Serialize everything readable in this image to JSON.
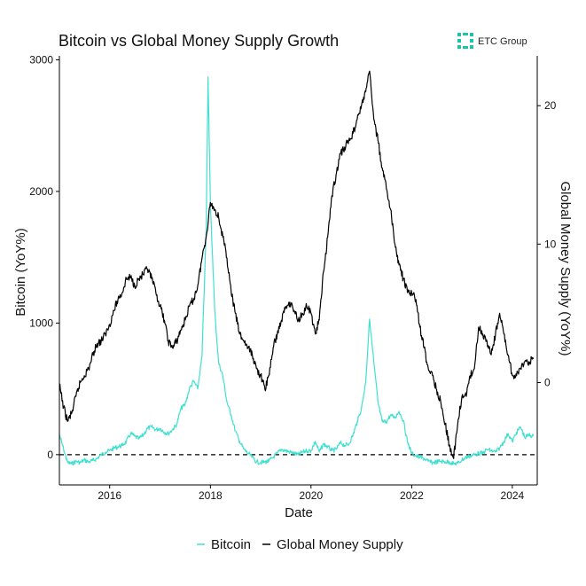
{
  "brand": {
    "name": "ETC Group",
    "icon": "etc-group-logo-icon",
    "color": "#19c5a8"
  },
  "chart_data": {
    "type": "line",
    "title": "Bitcoin vs Global Money Supply Growth",
    "xlabel": "Date",
    "ylabel_left": "Bitcoin (YoY%)",
    "ylabel_right": "Global Money Supply (YoY%)",
    "x_range": [
      "2015-01-01",
      "2024-06-30"
    ],
    "x_ticks": [
      "2016",
      "2018",
      "2020",
      "2022",
      "2024"
    ],
    "y_left_range": [
      -230,
      3030
    ],
    "y_left_ticks": [
      "0",
      "1000",
      "2000",
      "3000"
    ],
    "y_right_range": [
      -7.4,
      23.6
    ],
    "y_right_ticks": [
      "0",
      "10",
      "20"
    ],
    "reference_line": {
      "axis": "left",
      "value": 0,
      "style": "dashed"
    },
    "grid": false,
    "legend": {
      "position": "bottom"
    },
    "series": [
      {
        "name": "Bitcoin",
        "axis": "left",
        "color": "#40e0d0",
        "points": [
          [
            "2015-01-01",
            150
          ],
          [
            "2015-02-01",
            40
          ],
          [
            "2015-03-01",
            -60
          ],
          [
            "2015-04-01",
            -70
          ],
          [
            "2015-05-01",
            -50
          ],
          [
            "2015-06-01",
            -60
          ],
          [
            "2015-07-01",
            -40
          ],
          [
            "2015-08-01",
            -55
          ],
          [
            "2015-09-01",
            -45
          ],
          [
            "2015-10-01",
            -30
          ],
          [
            "2015-11-01",
            0
          ],
          [
            "2015-12-01",
            20
          ],
          [
            "2016-01-01",
            30
          ],
          [
            "2016-02-01",
            50
          ],
          [
            "2016-03-01",
            60
          ],
          [
            "2016-04-01",
            70
          ],
          [
            "2016-05-01",
            100
          ],
          [
            "2016-06-01",
            160
          ],
          [
            "2016-07-01",
            140
          ],
          [
            "2016-08-01",
            120
          ],
          [
            "2016-09-01",
            150
          ],
          [
            "2016-10-01",
            200
          ],
          [
            "2016-11-01",
            210
          ],
          [
            "2016-12-01",
            190
          ],
          [
            "2017-01-01",
            200
          ],
          [
            "2017-02-01",
            170
          ],
          [
            "2017-03-01",
            160
          ],
          [
            "2017-04-01",
            190
          ],
          [
            "2017-05-01",
            230
          ],
          [
            "2017-06-01",
            350
          ],
          [
            "2017-07-01",
            380
          ],
          [
            "2017-08-01",
            500
          ],
          [
            "2017-09-01",
            560
          ],
          [
            "2017-10-01",
            500
          ],
          [
            "2017-11-01",
            750
          ],
          [
            "2017-12-01",
            1700
          ],
          [
            "2017-12-15",
            2870
          ],
          [
            "2018-01-01",
            1900
          ],
          [
            "2018-02-01",
            1100
          ],
          [
            "2018-03-01",
            700
          ],
          [
            "2018-04-01",
            600
          ],
          [
            "2018-05-01",
            400
          ],
          [
            "2018-06-01",
            300
          ],
          [
            "2018-07-01",
            180
          ],
          [
            "2018-08-01",
            100
          ],
          [
            "2018-09-01",
            40
          ],
          [
            "2018-10-01",
            10
          ],
          [
            "2018-11-01",
            -20
          ],
          [
            "2018-12-01",
            -55
          ],
          [
            "2019-01-01",
            -60
          ],
          [
            "2019-02-01",
            -55
          ],
          [
            "2019-03-01",
            -50
          ],
          [
            "2019-04-01",
            -20
          ],
          [
            "2019-05-01",
            10
          ],
          [
            "2019-06-01",
            40
          ],
          [
            "2019-07-01",
            30
          ],
          [
            "2019-08-01",
            20
          ],
          [
            "2019-09-01",
            10
          ],
          [
            "2019-10-01",
            0
          ],
          [
            "2019-11-01",
            20
          ],
          [
            "2019-12-01",
            30
          ],
          [
            "2020-01-01",
            30
          ],
          [
            "2020-02-01",
            100
          ],
          [
            "2020-03-01",
            20
          ],
          [
            "2020-04-01",
            80
          ],
          [
            "2020-05-01",
            60
          ],
          [
            "2020-06-01",
            30
          ],
          [
            "2020-07-01",
            40
          ],
          [
            "2020-08-01",
            90
          ],
          [
            "2020-09-01",
            70
          ],
          [
            "2020-10-01",
            80
          ],
          [
            "2020-11-01",
            150
          ],
          [
            "2020-12-01",
            250
          ],
          [
            "2021-01-01",
            350
          ],
          [
            "2021-02-01",
            550
          ],
          [
            "2021-03-01",
            1030
          ],
          [
            "2021-04-01",
            700
          ],
          [
            "2021-05-01",
            400
          ],
          [
            "2021-06-01",
            250
          ],
          [
            "2021-07-01",
            250
          ],
          [
            "2021-08-01",
            300
          ],
          [
            "2021-09-01",
            280
          ],
          [
            "2021-10-01",
            330
          ],
          [
            "2021-11-01",
            260
          ],
          [
            "2021-12-01",
            100
          ],
          [
            "2022-01-01",
            10
          ],
          [
            "2022-02-01",
            -10
          ],
          [
            "2022-03-01",
            -20
          ],
          [
            "2022-04-01",
            -30
          ],
          [
            "2022-05-01",
            -50
          ],
          [
            "2022-06-01",
            -60
          ],
          [
            "2022-07-01",
            -55
          ],
          [
            "2022-08-01",
            -50
          ],
          [
            "2022-09-01",
            -55
          ],
          [
            "2022-10-01",
            -55
          ],
          [
            "2022-11-01",
            -70
          ],
          [
            "2022-12-01",
            -65
          ],
          [
            "2023-01-01",
            -40
          ],
          [
            "2023-02-01",
            -20
          ],
          [
            "2023-03-01",
            -10
          ],
          [
            "2023-04-01",
            0
          ],
          [
            "2023-05-01",
            10
          ],
          [
            "2023-06-01",
            10
          ],
          [
            "2023-07-01",
            40
          ],
          [
            "2023-08-01",
            30
          ],
          [
            "2023-09-01",
            20
          ],
          [
            "2023-10-01",
            50
          ],
          [
            "2023-11-01",
            100
          ],
          [
            "2023-12-01",
            160
          ],
          [
            "2024-01-01",
            100
          ],
          [
            "2024-02-01",
            170
          ],
          [
            "2024-03-01",
            210
          ],
          [
            "2024-04-01",
            130
          ],
          [
            "2024-05-01",
            150
          ],
          [
            "2024-06-01",
            140
          ]
        ]
      },
      {
        "name": "Global Money Supply",
        "axis": "right",
        "color": "#000000",
        "points": [
          [
            "2015-01-01",
            -0.2
          ],
          [
            "2015-02-01",
            -1.8
          ],
          [
            "2015-03-01",
            -2.8
          ],
          [
            "2015-04-01",
            -2.2
          ],
          [
            "2015-05-01",
            -1.0
          ],
          [
            "2015-06-01",
            0.0
          ],
          [
            "2015-07-01",
            0.5
          ],
          [
            "2015-08-01",
            1.0
          ],
          [
            "2015-09-01",
            2.0
          ],
          [
            "2015-10-01",
            2.8
          ],
          [
            "2015-11-01",
            3.0
          ],
          [
            "2015-12-01",
            3.5
          ],
          [
            "2016-01-01",
            4.2
          ],
          [
            "2016-02-01",
            5.2
          ],
          [
            "2016-03-01",
            6.0
          ],
          [
            "2016-04-01",
            6.5
          ],
          [
            "2016-05-01",
            7.5
          ],
          [
            "2016-06-01",
            7.6
          ],
          [
            "2016-07-01",
            7.0
          ],
          [
            "2016-08-01",
            7.5
          ],
          [
            "2016-09-01",
            7.8
          ],
          [
            "2016-10-01",
            8.2
          ],
          [
            "2016-11-01",
            7.5
          ],
          [
            "2016-12-01",
            6.5
          ],
          [
            "2017-01-01",
            5.5
          ],
          [
            "2017-02-01",
            4.5
          ],
          [
            "2017-03-01",
            3.0
          ],
          [
            "2017-04-01",
            2.5
          ],
          [
            "2017-05-01",
            3.0
          ],
          [
            "2017-06-01",
            3.8
          ],
          [
            "2017-07-01",
            4.5
          ],
          [
            "2017-08-01",
            5.5
          ],
          [
            "2017-09-01",
            6.0
          ],
          [
            "2017-10-01",
            7.0
          ],
          [
            "2017-11-01",
            9.0
          ],
          [
            "2017-12-01",
            10.5
          ],
          [
            "2018-01-01",
            13.0
          ],
          [
            "2018-02-01",
            12.5
          ],
          [
            "2018-03-01",
            12.0
          ],
          [
            "2018-04-01",
            10.5
          ],
          [
            "2018-05-01",
            9.0
          ],
          [
            "2018-06-01",
            6.5
          ],
          [
            "2018-07-01",
            5.0
          ],
          [
            "2018-08-01",
            3.5
          ],
          [
            "2018-09-01",
            3.0
          ],
          [
            "2018-10-01",
            2.5
          ],
          [
            "2018-11-01",
            2.0
          ],
          [
            "2018-12-01",
            1.0
          ],
          [
            "2019-01-01",
            0.5
          ],
          [
            "2019-02-01",
            -0.5
          ],
          [
            "2019-03-01",
            0.5
          ],
          [
            "2019-04-01",
            2.5
          ],
          [
            "2019-05-01",
            3.5
          ],
          [
            "2019-06-01",
            4.5
          ],
          [
            "2019-07-01",
            5.5
          ],
          [
            "2019-08-01",
            5.8
          ],
          [
            "2019-09-01",
            5.2
          ],
          [
            "2019-10-01",
            4.5
          ],
          [
            "2019-11-01",
            5.0
          ],
          [
            "2019-12-01",
            5.5
          ],
          [
            "2020-01-01",
            5.0
          ],
          [
            "2020-02-01",
            3.5
          ],
          [
            "2020-03-01",
            4.5
          ],
          [
            "2020-04-01",
            8.0
          ],
          [
            "2020-05-01",
            10.5
          ],
          [
            "2020-06-01",
            13.5
          ],
          [
            "2020-07-01",
            15.0
          ],
          [
            "2020-08-01",
            16.5
          ],
          [
            "2020-09-01",
            17.0
          ],
          [
            "2020-10-01",
            17.5
          ],
          [
            "2020-11-01",
            18.0
          ],
          [
            "2020-12-01",
            19.0
          ],
          [
            "2021-01-01",
            20.0
          ],
          [
            "2021-02-01",
            21.0
          ],
          [
            "2021-03-01",
            22.5
          ],
          [
            "2021-04-01",
            19.0
          ],
          [
            "2021-05-01",
            17.5
          ],
          [
            "2021-06-01",
            15.5
          ],
          [
            "2021-07-01",
            14.0
          ],
          [
            "2021-08-01",
            12.5
          ],
          [
            "2021-09-01",
            10.0
          ],
          [
            "2021-10-01",
            8.5
          ],
          [
            "2021-11-01",
            7.5
          ],
          [
            "2021-12-01",
            6.5
          ],
          [
            "2022-01-01",
            6.5
          ],
          [
            "2022-02-01",
            6.0
          ],
          [
            "2022-03-01",
            4.0
          ],
          [
            "2022-04-01",
            2.5
          ],
          [
            "2022-05-01",
            1.0
          ],
          [
            "2022-06-01",
            0.5
          ],
          [
            "2022-07-01",
            -0.5
          ],
          [
            "2022-08-01",
            -1.5
          ],
          [
            "2022-09-01",
            -3.0
          ],
          [
            "2022-10-01",
            -4.5
          ],
          [
            "2022-11-01",
            -5.5
          ],
          [
            "2022-12-01",
            -3.0
          ],
          [
            "2023-01-01",
            -1.0
          ],
          [
            "2023-02-01",
            -1.0
          ],
          [
            "2023-03-01",
            0.5
          ],
          [
            "2023-04-01",
            1.0
          ],
          [
            "2023-05-01",
            4.0
          ],
          [
            "2023-06-01",
            3.5
          ],
          [
            "2023-07-01",
            3.0
          ],
          [
            "2023-08-01",
            2.0
          ],
          [
            "2023-09-01",
            3.5
          ],
          [
            "2023-10-01",
            5.0
          ],
          [
            "2023-11-01",
            3.5
          ],
          [
            "2023-12-01",
            2.0
          ],
          [
            "2024-01-01",
            0.5
          ],
          [
            "2024-02-01",
            0.5
          ],
          [
            "2024-03-01",
            1.0
          ],
          [
            "2024-04-01",
            1.5
          ],
          [
            "2024-05-01",
            1.5
          ],
          [
            "2024-06-01",
            1.7
          ]
        ]
      }
    ]
  }
}
